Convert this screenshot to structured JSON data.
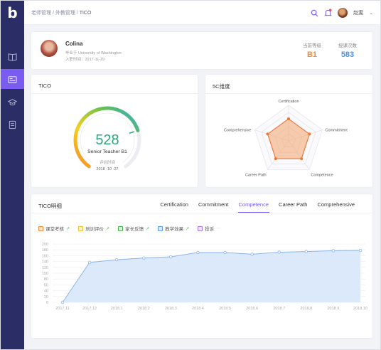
{
  "app": {
    "logo": "b"
  },
  "breadcrumb": {
    "items": [
      "老师管理",
      "外教管理"
    ],
    "separator": " / ",
    "current": "TICO"
  },
  "user": {
    "name": "赵雯",
    "caret": "⌄"
  },
  "profile": {
    "name": "Colina",
    "school": "毕业于 University of Washington",
    "joined": "入职时间：2017-11-29",
    "level_label": "当前等级",
    "level_value": "B1",
    "count_label": "授课次数",
    "count_value": "583"
  },
  "tico": {
    "title": "TICO",
    "score": "528",
    "level": "Senior Teacher B1",
    "eval_label": "评估时间",
    "eval_date": "2018 -10 -27",
    "gauge_fraction": 0.75
  },
  "five_c": {
    "title": "5C维度",
    "axes": [
      "Certification",
      "Commitment",
      "Competence",
      "Career Path",
      "Comprehensive"
    ],
    "values": [
      0.62,
      0.62,
      0.62,
      0.62,
      0.62
    ]
  },
  "detail": {
    "title": "TICO明细",
    "tabs": [
      "Certification",
      "Commitment",
      "Competence",
      "Career Path",
      "Comprehensive"
    ],
    "active_tab": 2,
    "legend": [
      {
        "label": "课堂考核",
        "color": "#f08a3c",
        "trend": "↗"
      },
      {
        "label": "培训评价",
        "color": "#f2c230",
        "trend": "↗"
      },
      {
        "label": "家长反馈",
        "color": "#4caf50",
        "trend": "↗"
      },
      {
        "label": "教学效果",
        "color": "#5a9ae8",
        "trend": "↗"
      },
      {
        "label": "投诉",
        "color": "#a87ae8",
        "trend": "···"
      }
    ]
  },
  "colors": {
    "accent": "#7a5cf0",
    "level_orange": "#f08a3c",
    "count_blue": "#4a90e2",
    "line": "#8ab4ec",
    "area": "#dce9fa"
  },
  "chart_data": {
    "type": "area",
    "categories": [
      "2017.11",
      "2017.12",
      "2018.1",
      "2018.2",
      "2018.3",
      "2018.4",
      "2018.5",
      "2018.6",
      "2018.7",
      "2018.8",
      "2018.9",
      "2018.10"
    ],
    "series": [
      {
        "values": [
          0,
          137,
          146,
          152,
          156,
          171,
          171,
          165,
          172,
          174,
          177,
          178
        ]
      }
    ],
    "yticks": [
      0,
      20,
      40,
      60,
      80,
      100,
      120,
      140,
      160,
      180,
      200
    ],
    "ylim": [
      0,
      200
    ],
    "grid": true,
    "title": "",
    "xlabel": "",
    "ylabel": ""
  }
}
